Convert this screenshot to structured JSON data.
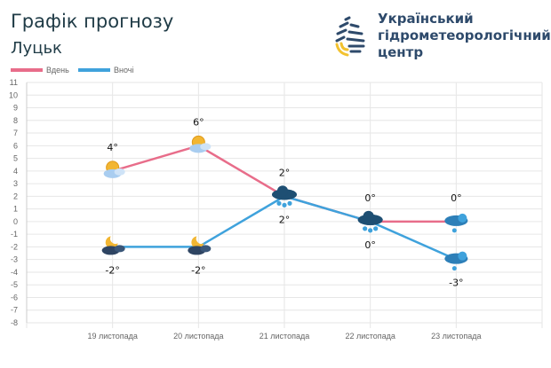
{
  "header": {
    "title": "Графік прогнозу",
    "city": "Луцьк",
    "org_lines": [
      "Український",
      "гідрометеорологічний",
      "центр"
    ]
  },
  "chart_data": {
    "type": "line",
    "categories": [
      "19 листопада",
      "20 листопада",
      "21 листопада",
      "22 листопада",
      "23 листопада"
    ],
    "series": [
      {
        "name": "Вдень",
        "color": "#e86d8a",
        "values": [
          4,
          6,
          2,
          0,
          0
        ],
        "labels": [
          "4°",
          "6°",
          "2°",
          "0°",
          "0°"
        ],
        "icons": [
          "partly-cloudy-sun-icon",
          "partly-cloudy-sun-icon",
          "rain-cloud-icon",
          "rain-cloud-icon",
          "snow-cloud-icon"
        ]
      },
      {
        "name": "Вночі",
        "color": "#3fa2dc",
        "values": [
          -2,
          -2,
          2,
          0,
          -3
        ],
        "labels": [
          "-2°",
          "-2°",
          "2°",
          "0°",
          "-3°"
        ],
        "icons": [
          "cloudy-moon-icon",
          "cloudy-moon-icon",
          "rain-cloud-icon",
          "rain-cloud-icon",
          "snow-cloud-icon"
        ]
      }
    ],
    "ylim": [
      -8,
      11
    ],
    "yticks": [
      "11",
      "10",
      "9",
      "8",
      "7",
      "6",
      "5",
      "4",
      "3",
      "2",
      "1",
      "0",
      "-1",
      "-2",
      "-3",
      "-4",
      "-5",
      "-6",
      "-7",
      "-8"
    ],
    "grid": true,
    "legend": "top-left"
  }
}
